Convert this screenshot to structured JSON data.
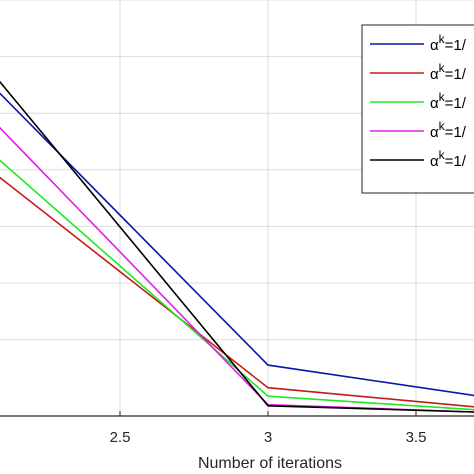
{
  "chart_data": {
    "type": "line",
    "title": "",
    "xlabel": "Number of iterations",
    "ylabel": "",
    "xlim": [
      2.0,
      3.7
    ],
    "ylim": [
      0,
      7.35
    ],
    "x_ticks": [
      2.5,
      3,
      3.5
    ],
    "x_tick_labels": [
      "2.5",
      "3",
      "3.5"
    ],
    "grid": true,
    "legend_position": "top-right",
    "series": [
      {
        "name": "α^k=1/",
        "color": "#0b14a8",
        "x": [
          2,
          3,
          3.7
        ],
        "y": [
          6.2,
          0.9,
          0.36
        ]
      },
      {
        "name": "α^k=1/",
        "color": "#c81a1a",
        "x": [
          2,
          3,
          3.7
        ],
        "y": [
          4.6,
          0.5,
          0.16
        ]
      },
      {
        "name": "α^k=1/",
        "color": "#21e821",
        "x": [
          2,
          3,
          3.7
        ],
        "y": [
          4.95,
          0.35,
          0.11
        ]
      },
      {
        "name": "α^k=1/",
        "color": "#e21ee2",
        "x": [
          2,
          3,
          3.7
        ],
        "y": [
          5.6,
          0.2,
          0.07
        ]
      },
      {
        "name": "α^k=1/",
        "color": "#000000",
        "x": [
          2,
          3,
          3.7
        ],
        "y": [
          6.5,
          0.18,
          0.07
        ]
      }
    ]
  }
}
